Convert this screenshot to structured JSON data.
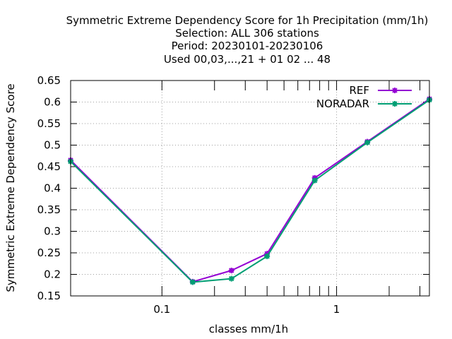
{
  "chart_data": {
    "type": "line",
    "title_lines": [
      "Symmetric Extreme Dependency Score  for 1h Precipitation (mm/1h)",
      "Selection: ALL    306 stations",
      "Period: 20230101-20230106",
      "Used  00,03,...,21  + 01 02 ... 48"
    ],
    "xlabel": "classes mm/1h",
    "ylabel": "Symmetric Extreme Dependency Score",
    "x_scale": "log",
    "xlim": [
      0.03,
      3.4
    ],
    "ylim": [
      0.15,
      0.65
    ],
    "x_ticks": [
      {
        "value": 0.1,
        "label": "0.1"
      },
      {
        "value": 1,
        "label": "1"
      }
    ],
    "x_minor_ticks": [
      0.2,
      0.3,
      0.4,
      0.5,
      0.6,
      0.7,
      0.8,
      0.9,
      2,
      3
    ],
    "y_ticks": [
      {
        "value": 0.15,
        "label": "0.15"
      },
      {
        "value": 0.2,
        "label": "0.2"
      },
      {
        "value": 0.25,
        "label": "0.25"
      },
      {
        "value": 0.3,
        "label": "0.3"
      },
      {
        "value": 0.35,
        "label": "0.35"
      },
      {
        "value": 0.4,
        "label": "0.4"
      },
      {
        "value": 0.45,
        "label": "0.45"
      },
      {
        "value": 0.5,
        "label": "0.5"
      },
      {
        "value": 0.55,
        "label": "0.55"
      },
      {
        "value": 0.6,
        "label": "0.6"
      },
      {
        "value": 0.65,
        "label": "0.65"
      }
    ],
    "grid": true,
    "legend_position": "top-right",
    "series": [
      {
        "name": "REF",
        "color": "#9400d3",
        "x": [
          0.03,
          0.15,
          0.25,
          0.4,
          0.75,
          1.5,
          3.4
        ],
        "y": [
          0.465,
          0.183,
          0.209,
          0.248,
          0.424,
          0.508,
          0.607
        ]
      },
      {
        "name": "NORADAR",
        "color": "#009e73",
        "x": [
          0.03,
          0.15,
          0.25,
          0.4,
          0.75,
          1.5,
          3.4
        ],
        "y": [
          0.462,
          0.182,
          0.19,
          0.242,
          0.418,
          0.506,
          0.605
        ]
      }
    ]
  }
}
